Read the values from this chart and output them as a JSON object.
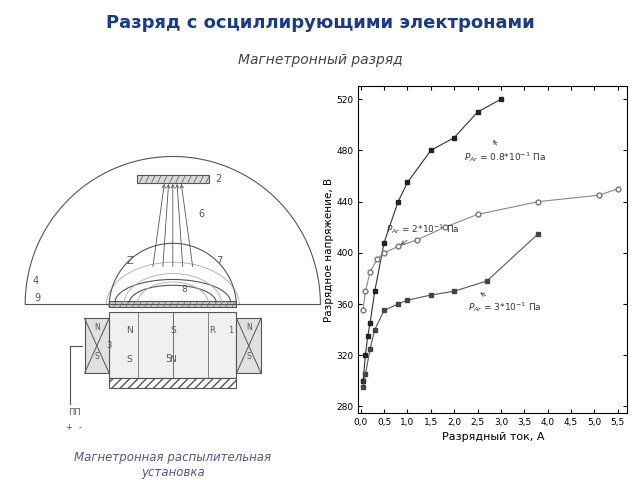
{
  "title_main": "Разряд с осциллирующими электронами",
  "title_sub": "Магнетронный разряд",
  "caption": "Магнетронная распылительная\nустановка",
  "title_color": "#1a3a8a",
  "subtitle_color": "#444444",
  "caption_color": "#555588",
  "bg_color": "#ffffff",
  "line_color": "#555555",
  "graph_xlabel": "Разрядный ток, А",
  "graph_ylabel": "Разрядное напряжение, В",
  "s1_x": [
    0.05,
    0.1,
    0.15,
    0.2,
    0.3,
    0.5,
    0.8,
    1.0,
    1.5,
    2.0,
    2.5,
    3.0
  ],
  "s1_y": [
    300,
    320,
    335,
    345,
    370,
    408,
    440,
    455,
    480,
    490,
    510,
    520
  ],
  "s2_x": [
    0.05,
    0.1,
    0.2,
    0.35,
    0.5,
    0.8,
    1.2,
    1.8,
    2.5,
    3.8,
    5.1,
    5.5
  ],
  "s2_y": [
    355,
    370,
    385,
    395,
    400,
    405,
    410,
    420,
    430,
    440,
    445,
    450
  ],
  "s3_x": [
    0.05,
    0.1,
    0.2,
    0.3,
    0.5,
    0.8,
    1.0,
    1.5,
    2.0,
    2.7,
    3.8
  ],
  "s3_y": [
    295,
    305,
    325,
    340,
    355,
    360,
    363,
    367,
    370,
    378,
    415
  ],
  "yticks": [
    280,
    320,
    360,
    400,
    440,
    480,
    520
  ],
  "xticks": [
    0.0,
    0.5,
    1.0,
    1.5,
    2.0,
    2.5,
    3.0,
    3.5,
    4.0,
    4.5,
    5.0,
    5.5
  ],
  "xlim": [
    -0.05,
    5.7
  ],
  "ylim": [
    275,
    530
  ]
}
